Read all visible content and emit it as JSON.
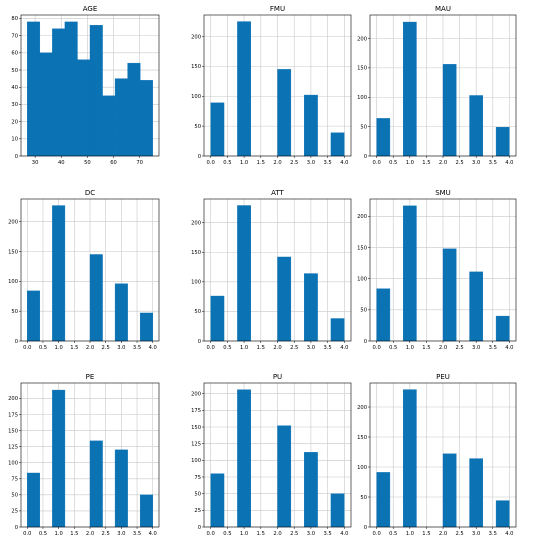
{
  "chart_data": [
    {
      "type": "bar",
      "title": "AGE",
      "bin_edges": [
        27,
        31.8,
        36.6,
        41.4,
        46.2,
        51,
        55.8,
        60.6,
        65.4,
        70.2,
        75
      ],
      "values": [
        78,
        60,
        74,
        78,
        56,
        76,
        35,
        45,
        54,
        44
      ],
      "xlim": [
        24.6,
        77.4
      ],
      "ylim": [
        0,
        82
      ],
      "xticks": [
        30,
        40,
        50,
        60,
        70
      ],
      "xtick_labels": [
        "30",
        "40",
        "50",
        "60",
        "70"
      ],
      "yticks": [
        0,
        10,
        20,
        30,
        40,
        50,
        60,
        70,
        80
      ],
      "ytick_labels": [
        "0",
        "10",
        "20",
        "30",
        "40",
        "50",
        "60",
        "70",
        "80"
      ],
      "grid": true
    },
    {
      "type": "bar",
      "title": "FMU",
      "bin_edges": [
        0,
        0.4,
        0.8,
        1.2,
        1.6,
        2.0,
        2.4,
        2.8,
        3.2,
        3.6,
        4.0
      ],
      "values": [
        89,
        0,
        225,
        0,
        0,
        145,
        0,
        102,
        0,
        39
      ],
      "xlim": [
        -0.2,
        4.2
      ],
      "ylim": [
        0,
        236
      ],
      "xticks": [
        0,
        0.5,
        1,
        1.5,
        2,
        2.5,
        3,
        3.5,
        4
      ],
      "xtick_labels": [
        "0.0",
        "0.5",
        "1.0",
        "1.5",
        "2.0",
        "2.5",
        "3.0",
        "3.5",
        "4.0"
      ],
      "yticks": [
        0,
        50,
        100,
        150,
        200
      ],
      "ytick_labels": [
        "0",
        "50",
        "100",
        "150",
        "200"
      ],
      "grid": true
    },
    {
      "type": "bar",
      "title": "MAU",
      "bin_edges": [
        0,
        0.4,
        0.8,
        1.2,
        1.6,
        2.0,
        2.4,
        2.8,
        3.2,
        3.6,
        4.0
      ],
      "values": [
        64,
        0,
        228,
        0,
        0,
        156,
        0,
        103,
        0,
        49
      ],
      "xlim": [
        -0.2,
        4.2
      ],
      "ylim": [
        0,
        240
      ],
      "xticks": [
        0,
        0.5,
        1,
        1.5,
        2,
        2.5,
        3,
        3.5,
        4
      ],
      "xtick_labels": [
        "0.0",
        "0.5",
        "1.0",
        "1.5",
        "2.0",
        "2.5",
        "3.0",
        "3.5",
        "4.0"
      ],
      "yticks": [
        0,
        50,
        100,
        150,
        200
      ],
      "ytick_labels": [
        "0",
        "50",
        "100",
        "150",
        "200"
      ],
      "grid": true
    },
    {
      "type": "bar",
      "title": "DC",
      "bin_edges": [
        0,
        0.4,
        0.8,
        1.2,
        1.6,
        2.0,
        2.4,
        2.8,
        3.2,
        3.6,
        4.0
      ],
      "values": [
        84,
        0,
        227,
        0,
        0,
        145,
        0,
        96,
        0,
        47
      ],
      "xlim": [
        -0.2,
        4.2
      ],
      "ylim": [
        0,
        238
      ],
      "xticks": [
        0,
        0.5,
        1,
        1.5,
        2,
        2.5,
        3,
        3.5,
        4
      ],
      "xtick_labels": [
        "0.0",
        "0.5",
        "1.0",
        "1.5",
        "2.0",
        "2.5",
        "3.0",
        "3.5",
        "4.0"
      ],
      "yticks": [
        0,
        50,
        100,
        150,
        200
      ],
      "ytick_labels": [
        "0",
        "50",
        "100",
        "150",
        "200"
      ],
      "grid": true
    },
    {
      "type": "bar",
      "title": "ATT",
      "bin_edges": [
        0,
        0.4,
        0.8,
        1.2,
        1.6,
        2.0,
        2.4,
        2.8,
        3.2,
        3.6,
        4.0
      ],
      "values": [
        76,
        0,
        229,
        0,
        0,
        142,
        0,
        114,
        0,
        38
      ],
      "xlim": [
        -0.2,
        4.2
      ],
      "ylim": [
        0,
        240
      ],
      "xticks": [
        0,
        0.5,
        1,
        1.5,
        2,
        2.5,
        3,
        3.5,
        4
      ],
      "xtick_labels": [
        "0.0",
        "0.5",
        "1.0",
        "1.5",
        "2.0",
        "2.5",
        "3.0",
        "3.5",
        "4.0"
      ],
      "yticks": [
        0,
        50,
        100,
        150,
        200
      ],
      "ytick_labels": [
        "0",
        "50",
        "100",
        "150",
        "200"
      ],
      "grid": true
    },
    {
      "type": "bar",
      "title": "SMU",
      "bin_edges": [
        0,
        0.4,
        0.8,
        1.2,
        1.6,
        2.0,
        2.4,
        2.8,
        3.2,
        3.6,
        4.0
      ],
      "values": [
        84,
        0,
        217,
        0,
        0,
        148,
        0,
        111,
        0,
        40
      ],
      "xlim": [
        -0.2,
        4.2
      ],
      "ylim": [
        0,
        228
      ],
      "xticks": [
        0,
        0.5,
        1,
        1.5,
        2,
        2.5,
        3,
        3.5,
        4
      ],
      "xtick_labels": [
        "0.0",
        "0.5",
        "1.0",
        "1.5",
        "2.0",
        "2.5",
        "3.0",
        "3.5",
        "4.0"
      ],
      "yticks": [
        0,
        50,
        100,
        150,
        200
      ],
      "ytick_labels": [
        "0",
        "50",
        "100",
        "150",
        "200"
      ],
      "grid": true
    },
    {
      "type": "bar",
      "title": "PE",
      "bin_edges": [
        0,
        0.4,
        0.8,
        1.2,
        1.6,
        2.0,
        2.4,
        2.8,
        3.2,
        3.6,
        4.0
      ],
      "values": [
        84,
        0,
        213,
        0,
        0,
        134,
        0,
        120,
        0,
        50
      ],
      "xlim": [
        -0.2,
        4.2
      ],
      "ylim": [
        0,
        224
      ],
      "xticks": [
        0,
        0.5,
        1,
        1.5,
        2,
        2.5,
        3,
        3.5,
        4
      ],
      "xtick_labels": [
        "0.0",
        "0.5",
        "1.0",
        "1.5",
        "2.0",
        "2.5",
        "3.0",
        "3.5",
        "4.0"
      ],
      "yticks": [
        0,
        25,
        50,
        75,
        100,
        125,
        150,
        175,
        200
      ],
      "ytick_labels": [
        "0",
        "25",
        "50",
        "75",
        "100",
        "125",
        "150",
        "175",
        "200"
      ],
      "grid": true
    },
    {
      "type": "bar",
      "title": "PU",
      "bin_edges": [
        0,
        0.4,
        0.8,
        1.2,
        1.6,
        2.0,
        2.4,
        2.8,
        3.2,
        3.6,
        4.0
      ],
      "values": [
        80,
        0,
        206,
        0,
        0,
        152,
        0,
        112,
        0,
        50
      ],
      "xlim": [
        -0.2,
        4.2
      ],
      "ylim": [
        0,
        216
      ],
      "xticks": [
        0,
        0.5,
        1,
        1.5,
        2,
        2.5,
        3,
        3.5,
        4
      ],
      "xtick_labels": [
        "0.0",
        "0.5",
        "1.0",
        "1.5",
        "2.0",
        "2.5",
        "3.0",
        "3.5",
        "4.0"
      ],
      "yticks": [
        0,
        25,
        50,
        75,
        100,
        125,
        150,
        175,
        200
      ],
      "ytick_labels": [
        "0",
        "25",
        "50",
        "75",
        "100",
        "125",
        "150",
        "175",
        "200"
      ],
      "grid": true
    },
    {
      "type": "bar",
      "title": "PEU",
      "bin_edges": [
        0,
        0.4,
        0.8,
        1.2,
        1.6,
        2.0,
        2.4,
        2.8,
        3.2,
        3.6,
        4.0
      ],
      "values": [
        91,
        0,
        229,
        0,
        0,
        122,
        0,
        114,
        0,
        44
      ],
      "xlim": [
        -0.2,
        4.2
      ],
      "ylim": [
        0,
        240
      ],
      "xticks": [
        0,
        0.5,
        1,
        1.5,
        2,
        2.5,
        3,
        3.5,
        4
      ],
      "xtick_labels": [
        "0.0",
        "0.5",
        "1.0",
        "1.5",
        "2.0",
        "2.5",
        "3.0",
        "3.5",
        "4.0"
      ],
      "yticks": [
        0,
        50,
        100,
        150,
        200
      ],
      "ytick_labels": [
        "0",
        "50",
        "100",
        "150",
        "200"
      ],
      "grid": true
    }
  ],
  "colors": {
    "bar": "#0b72b4",
    "grid": "#c8c8c8"
  }
}
